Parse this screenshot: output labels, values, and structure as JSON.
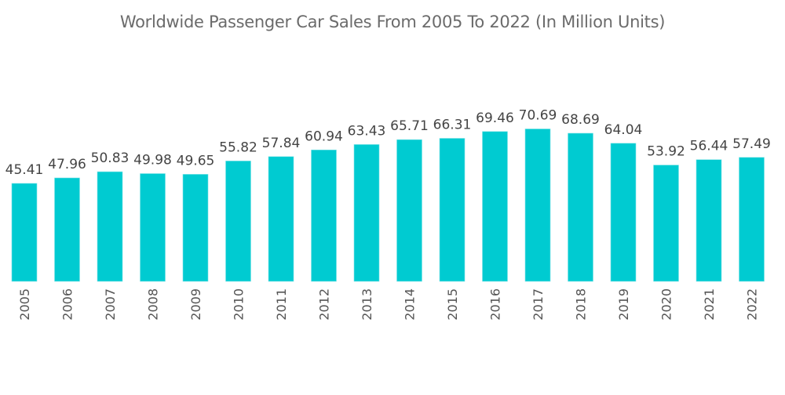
{
  "chart_data": {
    "type": "bar",
    "title": "Worldwide Passenger Car Sales From 2005 To 2022 (In Million Units)",
    "xlabel": "",
    "ylabel": "",
    "categories": [
      "2005",
      "2006",
      "2007",
      "2008",
      "2009",
      "2010",
      "2011",
      "2012",
      "2013",
      "2014",
      "2015",
      "2016",
      "2017",
      "2018",
      "2019",
      "2020",
      "2021",
      "2022"
    ],
    "values": [
      45.41,
      47.96,
      50.83,
      49.98,
      49.65,
      55.82,
      57.84,
      60.94,
      63.43,
      65.71,
      66.31,
      69.46,
      70.69,
      68.69,
      64.04,
      53.92,
      56.44,
      57.49
    ],
    "value_labels": [
      "45.41",
      "47.96",
      "50.83",
      "49.98",
      "49.65",
      "55.82",
      "57.84",
      "60.94",
      "63.43",
      "65.71",
      "66.31",
      "69.46",
      "70.69",
      "68.69",
      "64.04",
      "53.92",
      "56.44",
      "57.49"
    ],
    "ylim": [
      0,
      80
    ],
    "y_axis_visible": false,
    "grid": false,
    "legend": "none",
    "bar_color": "#00cbd1",
    "x_tick_rotation": "vertical"
  }
}
